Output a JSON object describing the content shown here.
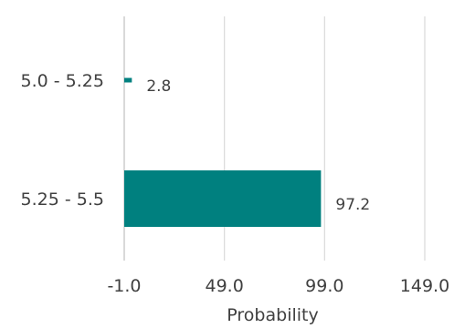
{
  "chart_data": {
    "type": "bar",
    "orientation": "horizontal",
    "categories": [
      "5.0 - 5.25",
      "5.25 - 5.5"
    ],
    "values": [
      2.8,
      97.2
    ],
    "data_labels": [
      "2.8",
      "97.2"
    ],
    "xlabel": "Probability",
    "ylabel": "",
    "xlim": [
      -1.0,
      149.0
    ],
    "xticks": [
      -1.0,
      49.0,
      99.0,
      149.0
    ],
    "xtick_labels": [
      "-1.0",
      "49.0",
      "99.0",
      "149.0"
    ],
    "grid": "vertical",
    "legend": "none",
    "colors": {
      "bar": "#00807f",
      "grid": "#d9d9d9",
      "text": "#404040"
    }
  }
}
